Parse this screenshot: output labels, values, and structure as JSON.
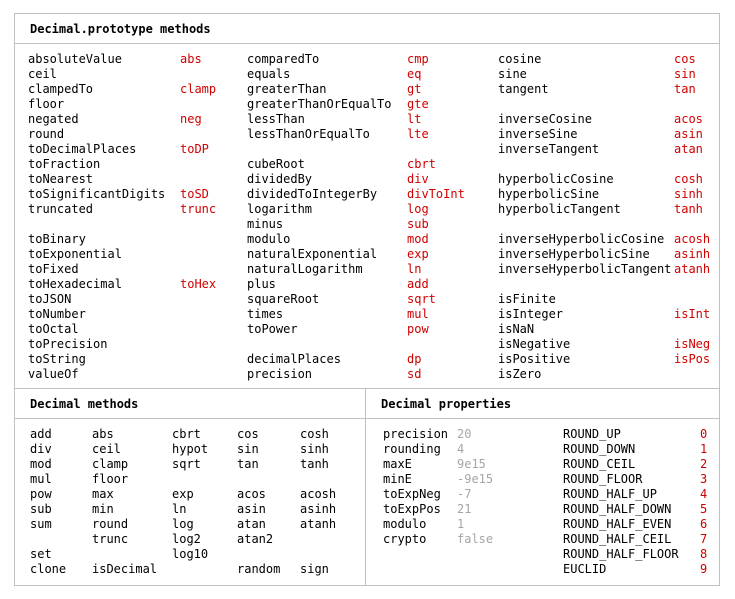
{
  "colors": {
    "accent": "#d10000",
    "muted": "#a6a6a6",
    "border": "#c1c1c1"
  },
  "prototype_panel": {
    "title": "Decimal.prototype methods",
    "columns": [
      {
        "rows": [
          {
            "name": "absoluteValue",
            "abbr": "abs"
          },
          {
            "name": "ceil",
            "abbr": ""
          },
          {
            "name": "clampedTo",
            "abbr": "clamp"
          },
          {
            "name": "floor",
            "abbr": ""
          },
          {
            "name": "negated",
            "abbr": "neg"
          },
          {
            "name": "round",
            "abbr": ""
          },
          {
            "name": "toDecimalPlaces",
            "abbr": "toDP"
          },
          {
            "name": "toFraction",
            "abbr": ""
          },
          {
            "name": "toNearest",
            "abbr": ""
          },
          {
            "name": "toSignificantDigits",
            "abbr": "toSD"
          },
          {
            "name": "truncated",
            "abbr": "trunc"
          },
          {
            "name": "",
            "abbr": ""
          },
          {
            "name": "toBinary",
            "abbr": ""
          },
          {
            "name": "toExponential",
            "abbr": ""
          },
          {
            "name": "toFixed",
            "abbr": ""
          },
          {
            "name": "toHexadecimal",
            "abbr": "toHex"
          },
          {
            "name": "toJSON",
            "abbr": ""
          },
          {
            "name": "toNumber",
            "abbr": ""
          },
          {
            "name": "toOctal",
            "abbr": ""
          },
          {
            "name": "toPrecision",
            "abbr": ""
          },
          {
            "name": "toString",
            "abbr": ""
          },
          {
            "name": "valueOf",
            "abbr": ""
          }
        ]
      },
      {
        "rows": [
          {
            "name": "comparedTo",
            "abbr": "cmp"
          },
          {
            "name": "equals",
            "abbr": "eq"
          },
          {
            "name": "greaterThan",
            "abbr": "gt"
          },
          {
            "name": "greaterThanOrEqualTo",
            "abbr": "gte"
          },
          {
            "name": "lessThan",
            "abbr": "lt"
          },
          {
            "name": "lessThanOrEqualTo",
            "abbr": "lte"
          },
          {
            "name": "",
            "abbr": ""
          },
          {
            "name": "cubeRoot",
            "abbr": "cbrt"
          },
          {
            "name": "dividedBy",
            "abbr": "div"
          },
          {
            "name": "dividedToIntegerBy",
            "abbr": "divToInt"
          },
          {
            "name": "logarithm",
            "abbr": "log"
          },
          {
            "name": "minus",
            "abbr": "sub"
          },
          {
            "name": "modulo",
            "abbr": "mod"
          },
          {
            "name": "naturalExponential",
            "abbr": "exp"
          },
          {
            "name": "naturalLogarithm",
            "abbr": "ln"
          },
          {
            "name": "plus",
            "abbr": "add"
          },
          {
            "name": "squareRoot",
            "abbr": "sqrt"
          },
          {
            "name": "times",
            "abbr": "mul"
          },
          {
            "name": "toPower",
            "abbr": "pow"
          },
          {
            "name": "",
            "abbr": ""
          },
          {
            "name": "decimalPlaces",
            "abbr": "dp"
          },
          {
            "name": "precision",
            "abbr": "sd"
          }
        ]
      },
      {
        "rows": [
          {
            "name": "cosine",
            "abbr": "cos"
          },
          {
            "name": "sine",
            "abbr": "sin"
          },
          {
            "name": "tangent",
            "abbr": "tan"
          },
          {
            "name": "",
            "abbr": ""
          },
          {
            "name": "inverseCosine",
            "abbr": "acos"
          },
          {
            "name": "inverseSine",
            "abbr": "asin"
          },
          {
            "name": "inverseTangent",
            "abbr": "atan"
          },
          {
            "name": "",
            "abbr": ""
          },
          {
            "name": "hyperbolicCosine",
            "abbr": "cosh"
          },
          {
            "name": "hyperbolicSine",
            "abbr": "sinh"
          },
          {
            "name": "hyperbolicTangent",
            "abbr": "tanh"
          },
          {
            "name": "",
            "abbr": ""
          },
          {
            "name": "inverseHyperbolicCosine",
            "abbr": "acosh"
          },
          {
            "name": "inverseHyperbolicSine",
            "abbr": "asinh"
          },
          {
            "name": "inverseHyperbolicTangent",
            "abbr": "atanh"
          },
          {
            "name": "",
            "abbr": ""
          },
          {
            "name": "isFinite",
            "abbr": ""
          },
          {
            "name": "isInteger",
            "abbr": "isInt"
          },
          {
            "name": "isNaN",
            "abbr": ""
          },
          {
            "name": "isNegative",
            "abbr": "isNeg"
          },
          {
            "name": "isPositive",
            "abbr": "isPos"
          },
          {
            "name": "isZero",
            "abbr": ""
          }
        ]
      }
    ]
  },
  "methods_panel": {
    "title": "Decimal methods",
    "rows": [
      [
        "add",
        "abs",
        "cbrt",
        "cos",
        "cosh"
      ],
      [
        "div",
        "ceil",
        "hypot",
        "sin",
        "sinh"
      ],
      [
        "mod",
        "clamp",
        "sqrt",
        "tan",
        "tanh"
      ],
      [
        "mul",
        "floor",
        "",
        "",
        ""
      ],
      [
        "pow",
        "max",
        "exp",
        "acos",
        "acosh"
      ],
      [
        "sub",
        "min",
        "ln",
        "asin",
        "asinh"
      ],
      [
        "sum",
        "round",
        "log",
        "atan",
        "atanh"
      ],
      [
        "",
        "trunc",
        "log2",
        "atan2",
        ""
      ],
      [
        "set",
        "",
        "log10",
        "",
        ""
      ],
      [
        "clone",
        "isDecimal",
        "",
        "random",
        "sign"
      ]
    ]
  },
  "properties_panel": {
    "title": "Decimal properties",
    "settings": [
      {
        "name": "precision",
        "value": "20"
      },
      {
        "name": "rounding",
        "value": "4"
      },
      {
        "name": "maxE",
        "value": "9e15"
      },
      {
        "name": "minE",
        "value": "-9e15"
      },
      {
        "name": "toExpNeg",
        "value": "-7"
      },
      {
        "name": "toExpPos",
        "value": "21"
      },
      {
        "name": "modulo",
        "value": "1"
      },
      {
        "name": "crypto",
        "value": "false"
      }
    ],
    "modes": [
      {
        "name": "ROUND_UP",
        "value": "0"
      },
      {
        "name": "ROUND_DOWN",
        "value": "1"
      },
      {
        "name": "ROUND_CEIL",
        "value": "2"
      },
      {
        "name": "ROUND_FLOOR",
        "value": "3"
      },
      {
        "name": "ROUND_HALF_UP",
        "value": "4"
      },
      {
        "name": "ROUND_HALF_DOWN",
        "value": "5"
      },
      {
        "name": "ROUND_HALF_EVEN",
        "value": "6"
      },
      {
        "name": "ROUND_HALF_CEIL",
        "value": "7"
      },
      {
        "name": "ROUND_HALF_FLOOR",
        "value": "8"
      },
      {
        "name": "EUCLID",
        "value": "9"
      }
    ]
  }
}
